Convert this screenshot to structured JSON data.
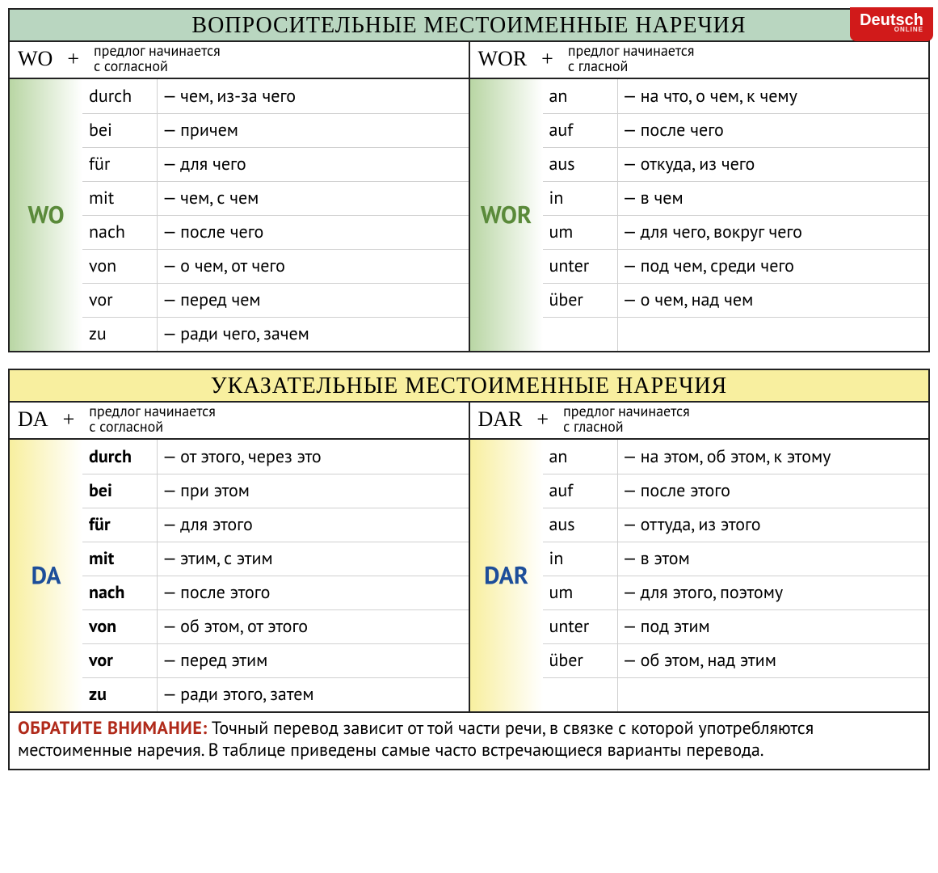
{
  "badge": {
    "text": "Deutsch",
    "sub": "ONLINE"
  },
  "colors": {
    "green_title_bg": "#b9d6c0",
    "yellow_title_bg": "#f8ef9f",
    "green_grad_from": "#b9d6a4",
    "green_grad_to": "#ffffff",
    "yellow_grad_from": "#f8ef9f",
    "yellow_grad_to": "#ffffff",
    "wo_color": "#5a8a3a",
    "da_color": "#1d4e9a",
    "border": "#222222",
    "row_border": "#d0d0d0",
    "note_lead": "#b02a1a",
    "badge_bg": "#d11a1a"
  },
  "blocks": [
    {
      "title": "ВОПРОСИТЕЛЬНЫЕ МЕСТОИМЕННЫЕ НАРЕЧИЯ",
      "title_bg": "#b9d6c0",
      "label_color": "#5a8a3a",
      "grad_from": "#b9d6a4",
      "cols": [
        {
          "prefix": "WO",
          "plus": "+",
          "rule": "предлог начинается\nс согласной",
          "vlabel": "WO",
          "bold_prep": false,
          "rows": [
            {
              "prep": "durch",
              "trans": "— чем, из-за чего"
            },
            {
              "prep": "bei",
              "trans": "— причем"
            },
            {
              "prep": "für",
              "trans": "— для чего"
            },
            {
              "prep": "mit",
              "trans": "— чем, с чем"
            },
            {
              "prep": "nach",
              "trans": "— после чего"
            },
            {
              "prep": "von",
              "trans": "— о чем, от чего"
            },
            {
              "prep": "vor",
              "trans": "— перед чем"
            },
            {
              "prep": "zu",
              "trans": "— ради чего, зачем"
            }
          ]
        },
        {
          "prefix": "WOR",
          "plus": "+",
          "rule": "предлог начинается\nс гласной",
          "vlabel": "WOR",
          "bold_prep": false,
          "rows": [
            {
              "prep": "an",
              "trans": "— на что, о чем, к чему"
            },
            {
              "prep": "auf",
              "trans": "— после чего"
            },
            {
              "prep": "aus",
              "trans": "— откуда, из чего"
            },
            {
              "prep": "in",
              "trans": "— в чем"
            },
            {
              "prep": "um",
              "trans": "— для чего, вокруг чего"
            },
            {
              "prep": "unter",
              "trans": "— под чем, среди чего"
            },
            {
              "prep": "über",
              "trans": "— о чем, над чем"
            },
            {
              "prep": "",
              "trans": ""
            }
          ]
        }
      ]
    },
    {
      "title": "УКАЗАТЕЛЬНЫЕ МЕСТОИМЕННЫЕ НАРЕЧИЯ",
      "title_bg": "#f8ef9f",
      "label_color": "#1d4e9a",
      "grad_from": "#f8ef9f",
      "cols": [
        {
          "prefix": "DA",
          "plus": "+",
          "rule": "предлог начинается\nс согласной",
          "vlabel": "DA",
          "bold_prep": true,
          "rows": [
            {
              "prep": "durch",
              "trans": "— от этого, через это"
            },
            {
              "prep": "bei",
              "trans": "— при этом"
            },
            {
              "prep": "für",
              "trans": "— для этого"
            },
            {
              "prep": "mit",
              "trans": "— этим, с этим"
            },
            {
              "prep": "nach",
              "trans": "— после этого"
            },
            {
              "prep": "von",
              "trans": "— об этом, от этого"
            },
            {
              "prep": "vor",
              "trans": "— перед этим"
            },
            {
              "prep": "zu",
              "trans": "— ради этого, затем"
            }
          ]
        },
        {
          "prefix": "DAR",
          "plus": "+",
          "rule": "предлог начинается\nс гласной",
          "vlabel": "DAR",
          "bold_prep": false,
          "rows": [
            {
              "prep": "an",
              "trans": "— на этом, об этом, к этому"
            },
            {
              "prep": "auf",
              "trans": "— после этого"
            },
            {
              "prep": "aus",
              "trans": "— оттуда, из этого"
            },
            {
              "prep": "in",
              "trans": "— в этом"
            },
            {
              "prep": "um",
              "trans": "— для этого, поэтому"
            },
            {
              "prep": "unter",
              "trans": "— под этим"
            },
            {
              "prep": "über",
              "trans": "— об этом, над этим"
            },
            {
              "prep": "",
              "trans": ""
            }
          ]
        }
      ],
      "note": {
        "lead": "ОБРАТИТЕ ВНИМАНИЕ:",
        "text": " Точный перевод зависит от той части речи, в связке с которой употребляются местоименные наречия. В таблице приведены самые часто встречающиеся варианты перевода."
      }
    }
  ]
}
